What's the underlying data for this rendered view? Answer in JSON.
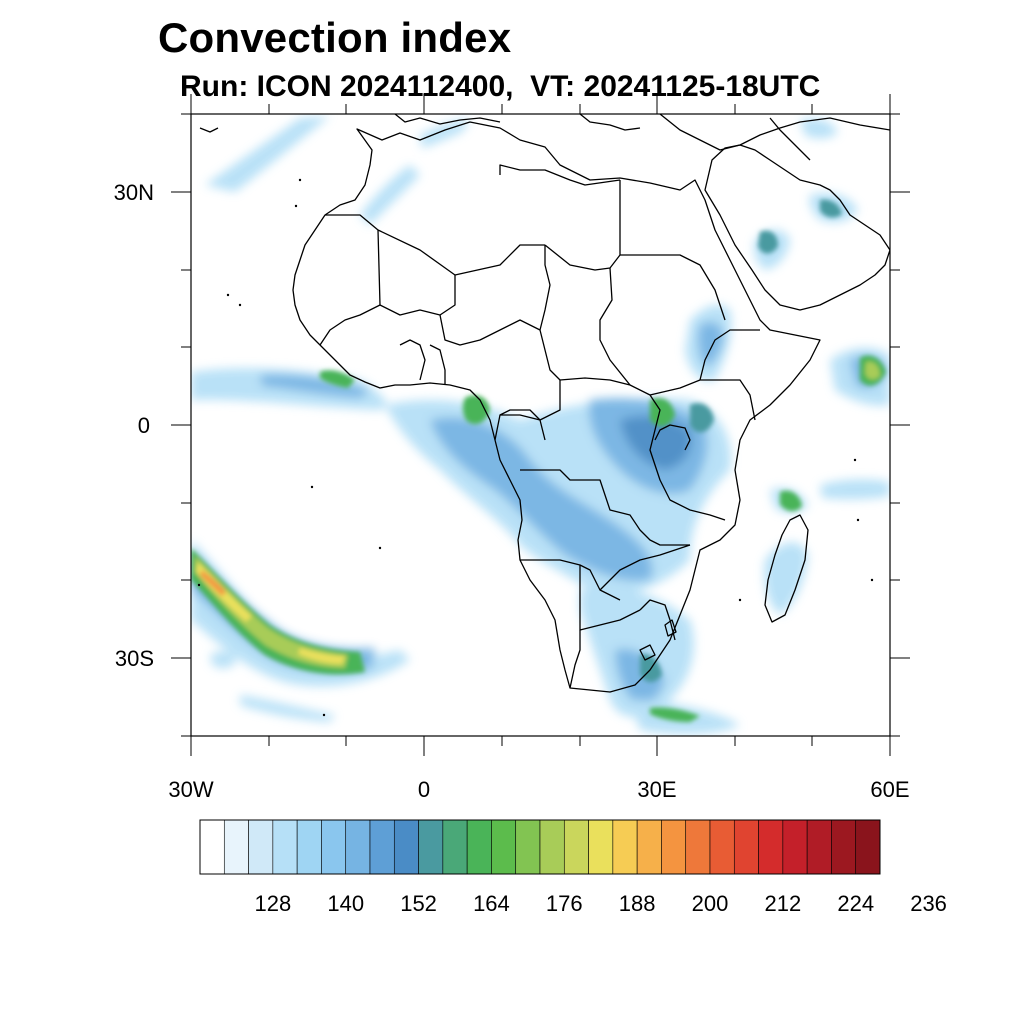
{
  "title": "Convection index",
  "subtitle": "Run: ICON 2024112400,  VT: 20241125-18UTC",
  "axes": {
    "lat_labels": [
      "30N",
      "0",
      "30S"
    ],
    "lon_labels": [
      "30W",
      "0",
      "30E",
      "60E"
    ]
  },
  "colorbar": {
    "labels": [
      "128",
      "140",
      "152",
      "164",
      "176",
      "188",
      "200",
      "212",
      "224",
      "236"
    ],
    "colors": [
      "#ffffff",
      "#e8f4fc",
      "#d0e9f8",
      "#b6e0f7",
      "#9fd5f3",
      "#8ac6ee",
      "#76b4e3",
      "#5e9fd6",
      "#4a8cc6",
      "#4a9aa0",
      "#4aa878",
      "#4ab458",
      "#5cbc4c",
      "#82c452",
      "#a8cc58",
      "#cad65c",
      "#eae05c",
      "#f6cc54",
      "#f6b04a",
      "#f49440",
      "#ee783a",
      "#e85c34",
      "#e04430",
      "#d42c2c",
      "#c4202a",
      "#b01c26",
      "#9c1820",
      "#8a141c"
    ]
  },
  "map": {
    "lon_range": [
      -30,
      60
    ],
    "lat_range": [
      -40,
      40
    ],
    "field_colors": {
      "light": "#b6e0f7",
      "medium": "#76b4e3",
      "dark": "#4a8cc6",
      "teal": "#4a9aa0",
      "green": "#4ab458",
      "yellowgreen": "#a8cc58",
      "yellow": "#eae05c",
      "orange": "#f49440",
      "red": "#d42c2c"
    }
  }
}
